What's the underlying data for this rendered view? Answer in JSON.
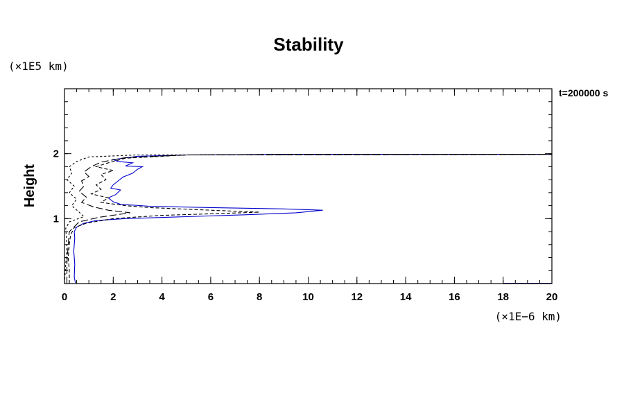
{
  "chart_data": {
    "type": "line",
    "title": "Stability",
    "ylabel": "Height",
    "y_unit_label": "(×1E5 km)",
    "x_unit_label": "(×1E−6 km)",
    "annotation": "t=200000 s",
    "xlim": [
      0,
      20
    ],
    "ylim": [
      0,
      3
    ],
    "xticks": [
      0,
      2,
      4,
      6,
      8,
      10,
      12,
      14,
      16,
      18,
      20
    ],
    "yticks": [
      1,
      2
    ],
    "x_minor_step": 0.5,
    "y_minor_step": 0.2,
    "grid": false,
    "series": [
      {
        "color": "#0000cc",
        "dash": "solid",
        "points": [
          [
            0.45,
            0.01
          ],
          [
            0.4,
            0.1
          ],
          [
            0.42,
            0.3
          ],
          [
            0.38,
            0.5
          ],
          [
            0.42,
            0.7
          ],
          [
            0.4,
            0.8
          ],
          [
            0.5,
            0.87
          ],
          [
            0.8,
            0.93
          ],
          [
            1.3,
            0.97
          ],
          [
            2.5,
            1.0
          ],
          [
            5.0,
            1.03
          ],
          [
            7.5,
            1.06
          ],
          [
            9.5,
            1.09
          ],
          [
            10.6,
            1.13
          ],
          [
            9.0,
            1.15
          ],
          [
            6.0,
            1.17
          ],
          [
            3.5,
            1.19
          ],
          [
            2.3,
            1.22
          ],
          [
            2.0,
            1.26
          ],
          [
            1.8,
            1.32
          ],
          [
            2.1,
            1.37
          ],
          [
            2.3,
            1.44
          ],
          [
            1.9,
            1.47
          ],
          [
            2.0,
            1.52
          ],
          [
            2.2,
            1.58
          ],
          [
            2.4,
            1.64
          ],
          [
            2.8,
            1.7
          ],
          [
            3.0,
            1.76
          ],
          [
            3.2,
            1.8
          ],
          [
            2.5,
            1.81
          ],
          [
            2.8,
            1.86
          ],
          [
            2.2,
            1.88
          ],
          [
            2.0,
            1.91
          ],
          [
            3.0,
            1.96
          ],
          [
            5.0,
            1.98
          ],
          [
            9.0,
            1.99
          ],
          [
            20.0,
            1.99
          ]
        ]
      },
      {
        "color": "#000000",
        "dash": "dashed",
        "points": [
          [
            0.2,
            0.0
          ],
          [
            0.2,
            0.2
          ],
          [
            0.15,
            0.4
          ],
          [
            0.2,
            0.6
          ],
          [
            0.25,
            0.75
          ],
          [
            0.4,
            0.86
          ],
          [
            0.9,
            0.93
          ],
          [
            2.0,
            1.0
          ],
          [
            4.0,
            1.05
          ],
          [
            6.5,
            1.08
          ],
          [
            8.0,
            1.1
          ],
          [
            6.0,
            1.13
          ],
          [
            3.5,
            1.17
          ],
          [
            2.5,
            1.2
          ],
          [
            1.5,
            1.25
          ],
          [
            1.8,
            1.32
          ],
          [
            1.1,
            1.38
          ],
          [
            1.5,
            1.45
          ],
          [
            1.3,
            1.52
          ],
          [
            1.7,
            1.6
          ],
          [
            1.5,
            1.68
          ],
          [
            2.0,
            1.74
          ],
          [
            1.3,
            1.8
          ],
          [
            1.8,
            1.86
          ],
          [
            2.5,
            1.93
          ],
          [
            5.0,
            1.98
          ],
          [
            9.0,
            1.99
          ],
          [
            20.0,
            1.99
          ]
        ]
      },
      {
        "color": "#000000",
        "dash": "longdash",
        "points": [
          [
            0.1,
            0.0
          ],
          [
            0.1,
            0.3
          ],
          [
            0.15,
            0.6
          ],
          [
            0.2,
            0.8
          ],
          [
            0.6,
            0.95
          ],
          [
            1.4,
            1.02
          ],
          [
            2.7,
            1.09
          ],
          [
            1.8,
            1.13
          ],
          [
            1.2,
            1.18
          ],
          [
            0.7,
            1.25
          ],
          [
            0.9,
            1.33
          ],
          [
            0.6,
            1.42
          ],
          [
            0.8,
            1.5
          ],
          [
            0.7,
            1.58
          ],
          [
            1.0,
            1.65
          ],
          [
            0.8,
            1.72
          ],
          [
            1.1,
            1.8
          ],
          [
            1.5,
            1.87
          ],
          [
            2.5,
            1.94
          ],
          [
            5.0,
            1.98
          ],
          [
            20.0,
            1.99
          ]
        ]
      },
      {
        "color": "#000000",
        "dash": "shortdash",
        "points": [
          [
            0.0,
            0.0
          ],
          [
            0.05,
            0.3
          ],
          [
            0.1,
            0.6
          ],
          [
            0.05,
            0.85
          ],
          [
            0.2,
            0.95
          ],
          [
            0.8,
            1.03
          ],
          [
            0.6,
            1.1
          ],
          [
            0.3,
            1.2
          ],
          [
            0.5,
            1.3
          ],
          [
            0.2,
            1.4
          ],
          [
            0.4,
            1.5
          ],
          [
            0.1,
            1.6
          ],
          [
            0.3,
            1.7
          ],
          [
            0.2,
            1.8
          ],
          [
            0.5,
            1.88
          ],
          [
            1.0,
            1.95
          ],
          [
            3.0,
            1.98
          ],
          [
            20.0,
            1.99
          ]
        ]
      },
      {
        "color": "#000080",
        "dash": "solid",
        "points": [
          [
            18.0,
            0.005
          ],
          [
            20.0,
            0.005
          ]
        ]
      }
    ]
  }
}
